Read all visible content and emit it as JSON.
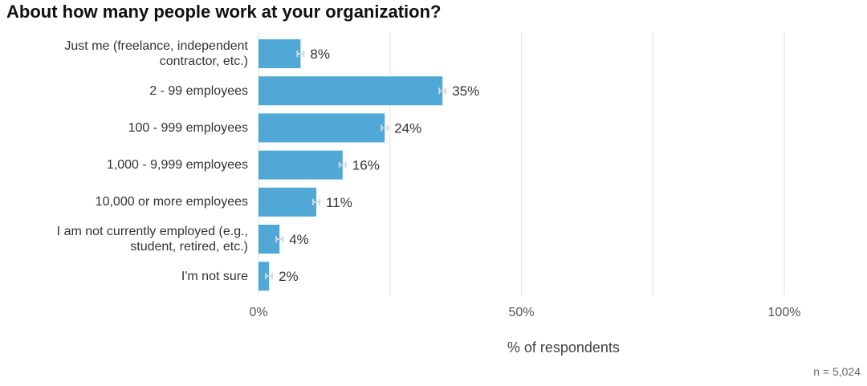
{
  "title": "About how many people work at your organization?",
  "chart_data": {
    "type": "bar",
    "orientation": "horizontal",
    "title": "About how many people work at your organization?",
    "categories": [
      [
        "Just me (freelance, independent",
        "contractor, etc.)"
      ],
      [
        "2 - 99 employees"
      ],
      [
        "100 - 999 employees"
      ],
      [
        "1,000 - 9,999 employees"
      ],
      [
        "10,000 or more employees"
      ],
      [
        "I am not currently employed (e.g.,",
        "student, retired, etc.)"
      ],
      [
        "I'm not sure"
      ]
    ],
    "values": [
      8,
      35,
      24,
      16,
      11,
      4,
      2
    ],
    "value_labels": [
      "8%",
      "35%",
      "24%",
      "16%",
      "11%",
      "4%",
      "2%"
    ],
    "error_bars": true,
    "xlabel": "% of respondents",
    "xlim": [
      0,
      100
    ],
    "xticks": [
      0,
      50,
      100
    ],
    "xtick_labels": [
      "0%",
      "50%",
      "100%"
    ],
    "gridlines": [
      25,
      50,
      75,
      100
    ],
    "grid": true,
    "legend": "none",
    "bar_color": "#4fa8d5",
    "gridline_color": "#e6e6e6",
    "error_bar_color": "#cfd8df"
  },
  "footnote": "n = 5,024"
}
